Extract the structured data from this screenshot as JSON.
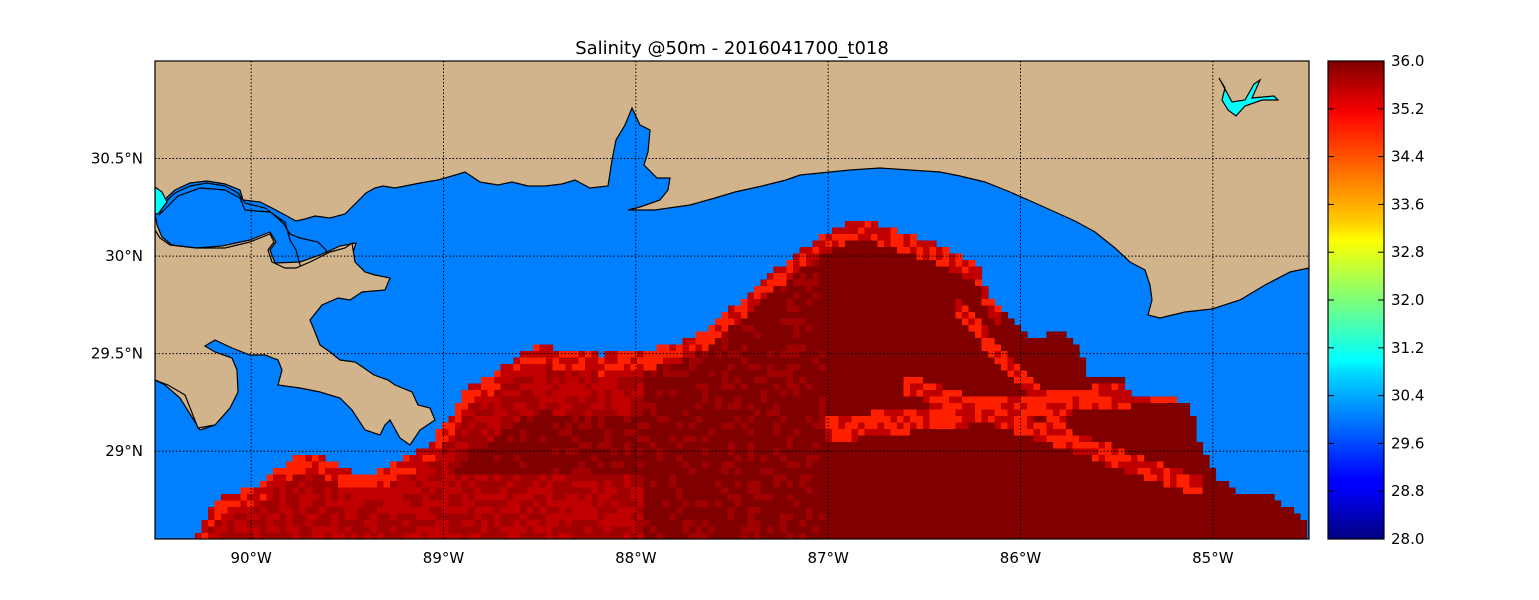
{
  "title": "Salinity @50m - 2016041700_t018",
  "lon_ticks": [
    "90°W",
    "89°W",
    "88°W",
    "87°W",
    "86°W",
    "85°W"
  ],
  "lat_ticks": [
    "30.5°N",
    "30°N",
    "29.5°N",
    "29°N"
  ],
  "colorbar": {
    "min": 28.0,
    "max": 36.0,
    "ticks": [
      "36.0",
      "35.2",
      "34.4",
      "33.6",
      "32.8",
      "32.0",
      "31.2",
      "30.4",
      "29.6",
      "28.8",
      "28.0"
    ],
    "colormap": "jet"
  },
  "colors": {
    "land": "#d2b48c",
    "water_fill": "#0080ff",
    "lake": "#00ffff",
    "salinity_high": "#800000",
    "salinity_mid": "#c00000",
    "salinity_front": "#ff2000"
  },
  "extent": {
    "lon_min": -90.5,
    "lon_max": -84.5,
    "lat_min": 28.55,
    "lat_max": 31.0
  }
}
